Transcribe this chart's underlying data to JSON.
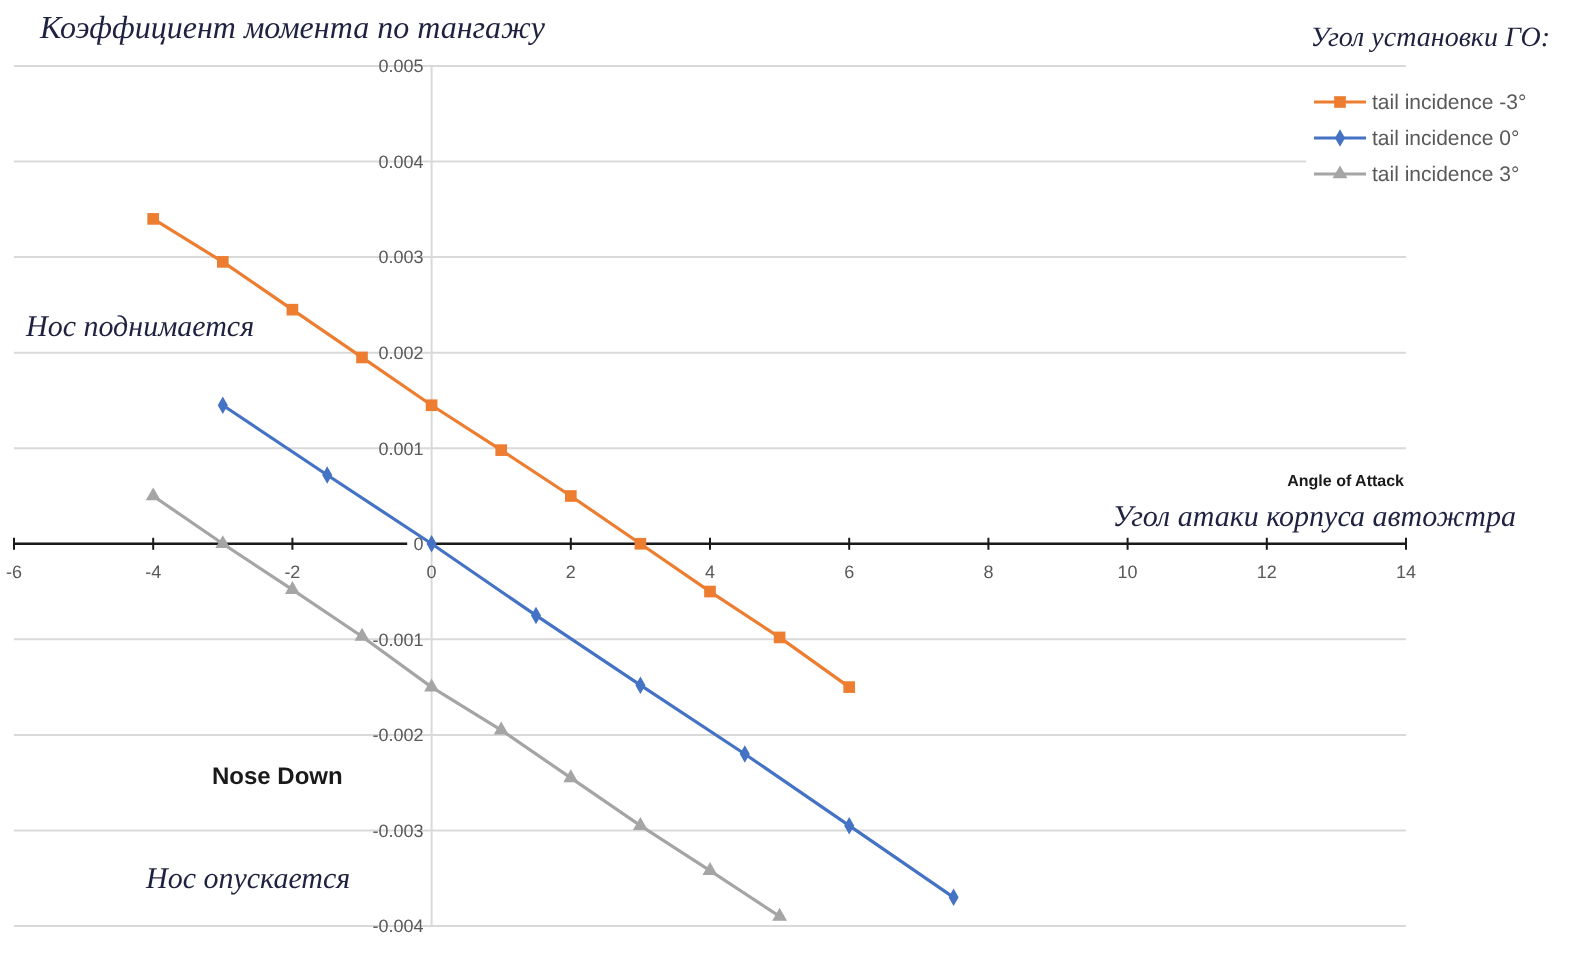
{
  "chart_data": {
    "type": "line",
    "ylabel": "Коэффициент момента по тангажу",
    "xlabel": "Angle of Attack",
    "legend_title": "Угол установки ГО:",
    "annotations": [
      "Угол атаки корпуса автожтра",
      "Нос поднимается",
      "Nose Down",
      "Нос опускается"
    ],
    "xlim": [
      -6,
      14
    ],
    "xticks": [
      -6,
      -4,
      -2,
      0,
      2,
      4,
      6,
      8,
      10,
      12,
      14
    ],
    "ylim": [
      -0.004,
      0.005
    ],
    "yticks": [
      -0.004,
      -0.003,
      -0.002,
      -0.001,
      0,
      0.001,
      0.002,
      0.003,
      0.004,
      0.005
    ],
    "grid": "y",
    "legend": "top right",
    "line_style": "solid",
    "series": [
      {
        "name": "tail incidence -3°",
        "color": "#ed7d31",
        "marker": "square",
        "x": [
          -4,
          -3,
          -2,
          -1,
          0,
          1,
          2,
          3,
          4,
          5,
          6
        ],
        "values": [
          0.0034,
          0.00295,
          0.00245,
          0.00195,
          0.00145,
          0.00098,
          0.0005,
          0,
          -0.0005,
          -0.00098,
          -0.0015
        ]
      },
      {
        "name": "tail incidence 0°",
        "color": "#4472c4",
        "marker": "diamond",
        "x": [
          -3,
          -1.5,
          0,
          1.5,
          3,
          4.5,
          6,
          7.5
        ],
        "values": [
          0.00145,
          0.00072,
          0,
          -0.00075,
          -0.00148,
          -0.0022,
          -0.00295,
          -0.0037
        ]
      },
      {
        "name": "tail incidence 3°",
        "color": "#a5a5a5",
        "marker": "triangle",
        "x": [
          -4,
          -3,
          -2,
          -1,
          0,
          1,
          2,
          3,
          4,
          5
        ],
        "values": [
          0.0005,
          0,
          -0.00048,
          -0.00097,
          -0.0015,
          -0.00195,
          -0.00245,
          -0.00295,
          -0.00342,
          -0.0039
        ]
      }
    ]
  }
}
